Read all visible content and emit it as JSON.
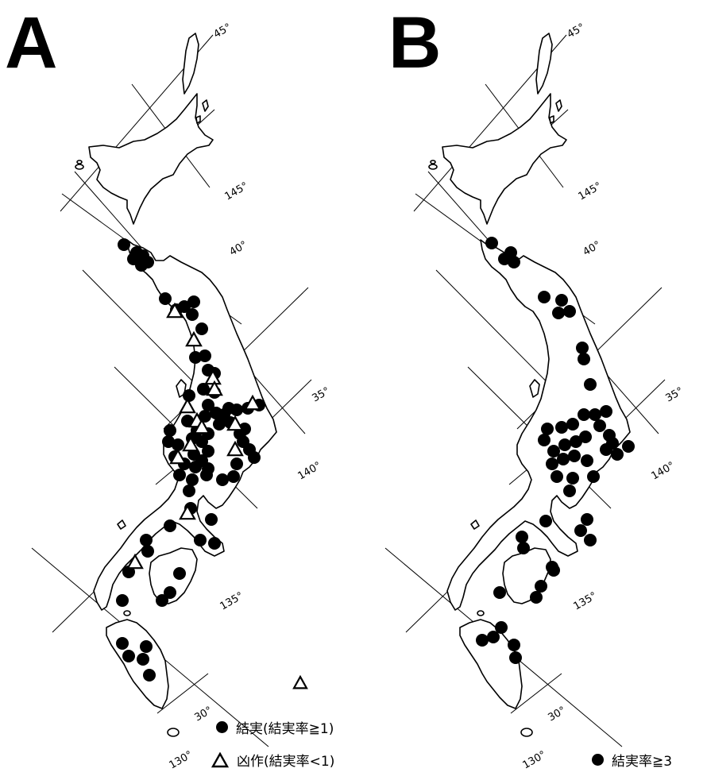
{
  "panels": [
    {
      "letter": "A",
      "degree_labels": {
        "lat45": "45°",
        "lat40": "40°",
        "lat35": "35°",
        "lat30": "30°",
        "lon145": "145°",
        "lon140": "140°",
        "lon135": "135°",
        "lon130": "130°"
      },
      "legend": [
        {
          "symbol": "filled-circle",
          "label": "結実(結実率≧1)"
        },
        {
          "symbol": "open-triangle",
          "label": "凶作(結実率<1)"
        }
      ],
      "site_counts": {
        "filled_circles": 74,
        "open_triangles": 14
      }
    },
    {
      "letter": "B",
      "degree_labels": {
        "lat45": "45°",
        "lat40": "40°",
        "lat35": "35°",
        "lat30": "30°",
        "lon145": "145°",
        "lon140": "140°",
        "lon135": "135°",
        "lon130": "130°"
      },
      "legend": [
        {
          "symbol": "filled-circle",
          "label": "結実率≧3"
        }
      ],
      "site_counts": {
        "filled_circles": 52
      }
    }
  ],
  "colors": {
    "marker": "#000000",
    "coast": "#000000",
    "background": "#ffffff"
  }
}
